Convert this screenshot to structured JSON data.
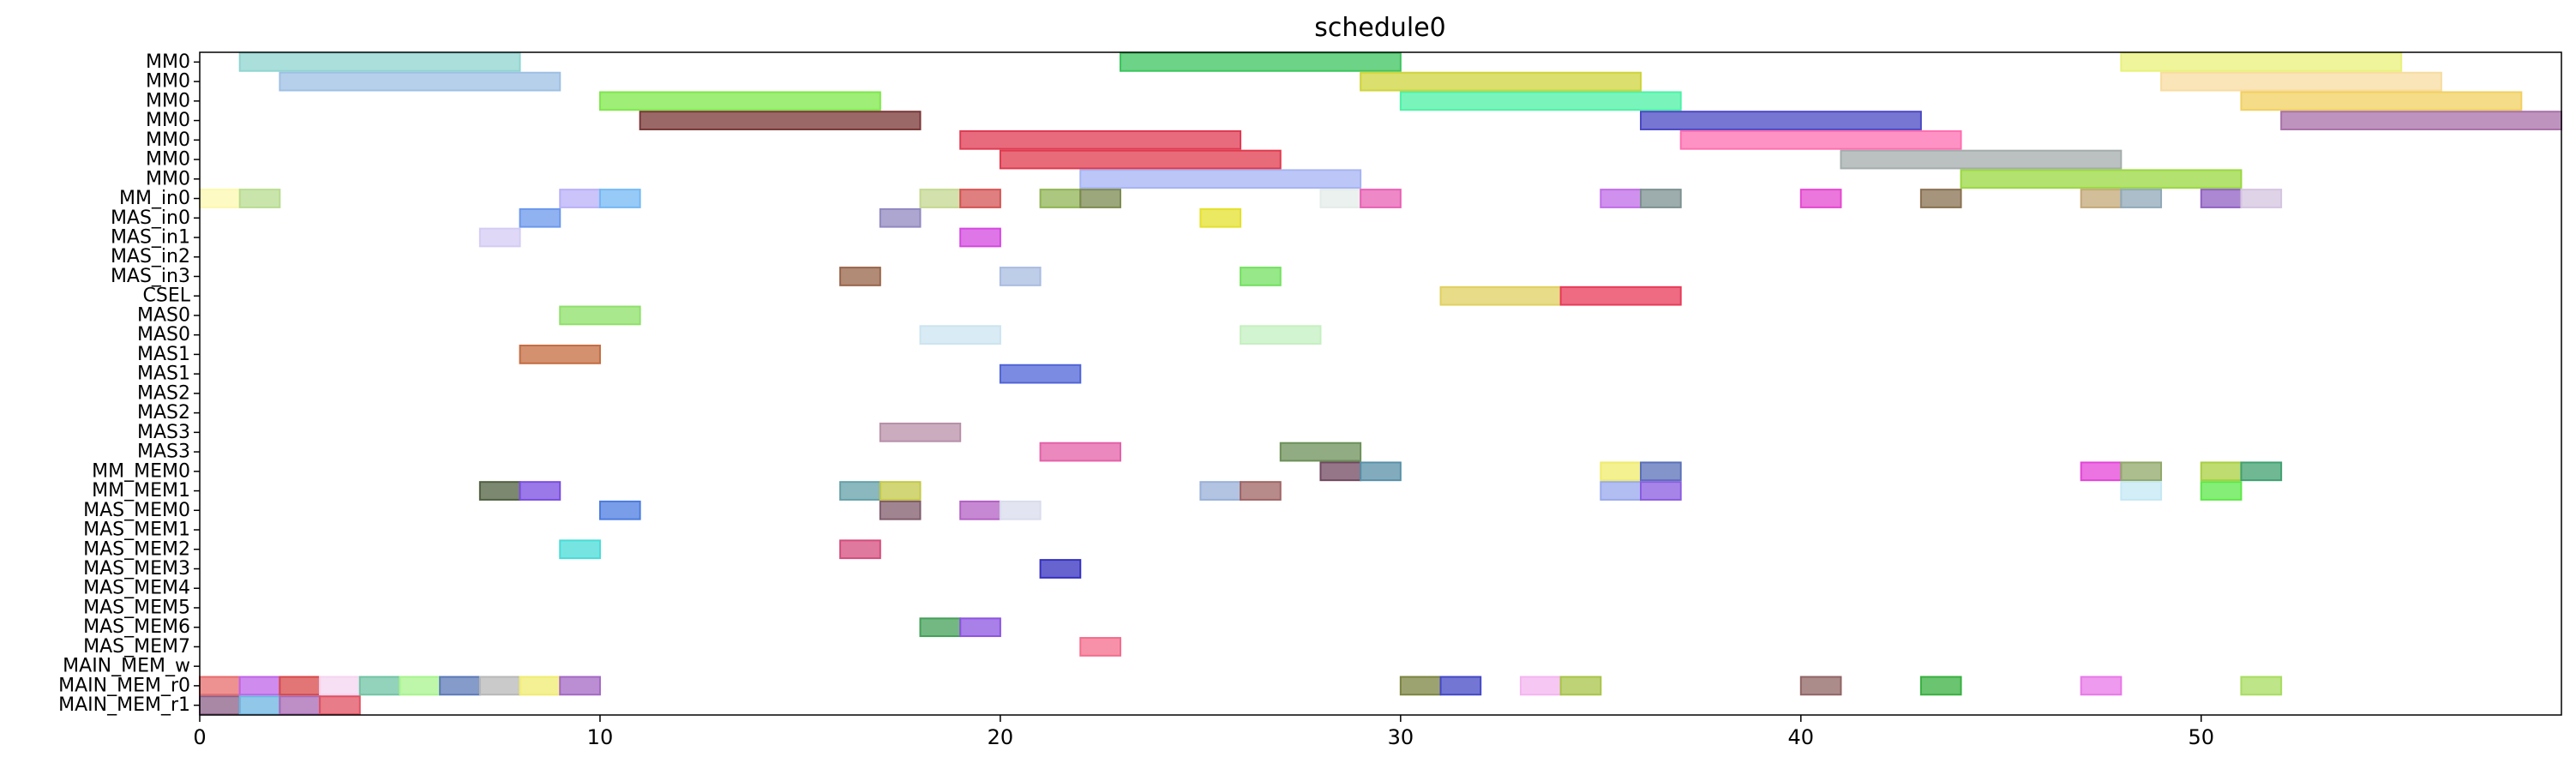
{
  "chart_data": {
    "type": "bar",
    "subtype": "gantt",
    "title": "schedule0",
    "xlabel": "",
    "ylabel": "",
    "xlim": [
      0,
      59
    ],
    "x_ticks": [
      0,
      10,
      20,
      30,
      40,
      50
    ],
    "grid": false,
    "rows": [
      "MM0",
      "MM0",
      "MM0",
      "MM0",
      "MM0",
      "MM0",
      "MM0",
      "MM_in0",
      "MAS_in0",
      "MAS_in1",
      "MAS_in2",
      "MAS_in3",
      "CSEL",
      "MAS0",
      "MAS0",
      "MAS1",
      "MAS1",
      "MAS2",
      "MAS2",
      "MAS3",
      "MAS3",
      "MM_MEM0",
      "MM_MEM1",
      "MAS_MEM0",
      "MAS_MEM1",
      "MAS_MEM2",
      "MAS_MEM3",
      "MAS_MEM4",
      "MAS_MEM5",
      "MAS_MEM6",
      "MAS_MEM7",
      "MAIN_MEM_w",
      "MAIN_MEM_r0",
      "MAIN_MEM_r1"
    ],
    "tasks": [
      {
        "row": 0,
        "start": 1,
        "end": 8,
        "color": "#8fd4d0"
      },
      {
        "row": 0,
        "start": 23,
        "end": 30,
        "color": "#3cc45e"
      },
      {
        "row": 0,
        "start": 48,
        "end": 55,
        "color": "#e8f27a"
      },
      {
        "row": 1,
        "start": 2,
        "end": 9,
        "color": "#9ec0e4"
      },
      {
        "row": 1,
        "start": 29,
        "end": 36,
        "color": "#cfd43c"
      },
      {
        "row": 1,
        "start": 49,
        "end": 56,
        "color": "#f8dca0"
      },
      {
        "row": 2,
        "start": 10,
        "end": 17,
        "color": "#7ee84a"
      },
      {
        "row": 2,
        "start": 30,
        "end": 37,
        "color": "#4cf2a6"
      },
      {
        "row": 2,
        "start": 51,
        "end": 58,
        "color": "#f2d060"
      },
      {
        "row": 3,
        "start": 11,
        "end": 18,
        "color": "#7a3636"
      },
      {
        "row": 3,
        "start": 36,
        "end": 43,
        "color": "#4a48c4"
      },
      {
        "row": 3,
        "start": 52,
        "end": 59,
        "color": "#a870a8"
      },
      {
        "row": 4,
        "start": 19,
        "end": 26,
        "color": "#e03a52"
      },
      {
        "row": 4,
        "start": 37,
        "end": 44,
        "color": "#ff6eb0"
      },
      {
        "row": 5,
        "start": 20,
        "end": 27,
        "color": "#e03a4e"
      },
      {
        "row": 5,
        "start": 41,
        "end": 48,
        "color": "#a4acac"
      },
      {
        "row": 6,
        "start": 22,
        "end": 29,
        "color": "#a6b4f4"
      },
      {
        "row": 6,
        "start": 44,
        "end": 51,
        "color": "#9ad840"
      },
      {
        "row": 7,
        "start": 0,
        "end": 1,
        "color": "#fcf8b0"
      },
      {
        "row": 7,
        "start": 1,
        "end": 2,
        "color": "#b8dc90"
      },
      {
        "row": 7,
        "start": 9,
        "end": 10,
        "color": "#b8b0f8"
      },
      {
        "row": 7,
        "start": 10,
        "end": 11,
        "color": "#74b8f4"
      },
      {
        "row": 7,
        "start": 18,
        "end": 19,
        "color": "#c4d890"
      },
      {
        "row": 7,
        "start": 19,
        "end": 20,
        "color": "#d45454"
      },
      {
        "row": 7,
        "start": 21,
        "end": 22,
        "color": "#90b454"
      },
      {
        "row": 7,
        "start": 22,
        "end": 23,
        "color": "#7c8a50"
      },
      {
        "row": 7,
        "start": 28,
        "end": 29,
        "color": "#e4ece8"
      },
      {
        "row": 7,
        "start": 29,
        "end": 30,
        "color": "#e860b4"
      },
      {
        "row": 7,
        "start": 35,
        "end": 36,
        "color": "#c06ce8"
      },
      {
        "row": 7,
        "start": 36,
        "end": 37,
        "color": "#7c9090"
      },
      {
        "row": 7,
        "start": 40,
        "end": 41,
        "color": "#e448d0"
      },
      {
        "row": 7,
        "start": 43,
        "end": 44,
        "color": "#887050"
      },
      {
        "row": 7,
        "start": 47,
        "end": 48,
        "color": "#c4a878"
      },
      {
        "row": 7,
        "start": 48,
        "end": 49,
        "color": "#90a8b8"
      },
      {
        "row": 7,
        "start": 50,
        "end": 51,
        "color": "#9060c4"
      },
      {
        "row": 7,
        "start": 51,
        "end": 52,
        "color": "#d4c4e0"
      },
      {
        "row": 8,
        "start": 8,
        "end": 9,
        "color": "#6c98ec"
      },
      {
        "row": 8,
        "start": 17,
        "end": 18,
        "color": "#9088c0"
      },
      {
        "row": 8,
        "start": 25,
        "end": 26,
        "color": "#e4e02c"
      },
      {
        "row": 9,
        "start": 7,
        "end": 8,
        "color": "#d4ccf4"
      },
      {
        "row": 9,
        "start": 19,
        "end": 20,
        "color": "#d448e0"
      },
      {
        "row": 11,
        "start": 16,
        "end": 17,
        "color": "#98644a"
      },
      {
        "row": 11,
        "start": 20,
        "end": 21,
        "color": "#a8bce0"
      },
      {
        "row": 11,
        "start": 26,
        "end": 27,
        "color": "#74e060"
      },
      {
        "row": 12,
        "start": 31,
        "end": 34,
        "color": "#e0d060"
      },
      {
        "row": 12,
        "start": 34,
        "end": 37,
        "color": "#e83a58"
      },
      {
        "row": 13,
        "start": 9,
        "end": 11,
        "color": "#8ee068"
      },
      {
        "row": 14,
        "start": 18,
        "end": 20,
        "color": "#cce4f0"
      },
      {
        "row": 14,
        "start": 26,
        "end": 28,
        "color": "#c4f0c0"
      },
      {
        "row": 15,
        "start": 8,
        "end": 10,
        "color": "#c46c40"
      },
      {
        "row": 16,
        "start": 20,
        "end": 22,
        "color": "#5064d8"
      },
      {
        "row": 19,
        "start": 17,
        "end": 19,
        "color": "#b890a8"
      },
      {
        "row": 20,
        "start": 21,
        "end": 23,
        "color": "#e460a8"
      },
      {
        "row": 20,
        "start": 27,
        "end": 29,
        "color": "#6c9058"
      },
      {
        "row": 21,
        "start": 28,
        "end": 29,
        "color": "#704860"
      },
      {
        "row": 21,
        "start": 29,
        "end": 30,
        "color": "#5890a8"
      },
      {
        "row": 21,
        "start": 35,
        "end": 36,
        "color": "#f0ec6c"
      },
      {
        "row": 21,
        "start": 36,
        "end": 37,
        "color": "#5a70b8"
      },
      {
        "row": 21,
        "start": 47,
        "end": 48,
        "color": "#e444d8"
      },
      {
        "row": 21,
        "start": 48,
        "end": 49,
        "color": "#90a868"
      },
      {
        "row": 21,
        "start": 50,
        "end": 51,
        "color": "#a8d040"
      },
      {
        "row": 21,
        "start": 51,
        "end": 52,
        "color": "#40a070"
      },
      {
        "row": 22,
        "start": 7,
        "end": 8,
        "color": "#506040"
      },
      {
        "row": 22,
        "start": 8,
        "end": 9,
        "color": "#7a4ce0"
      },
      {
        "row": 22,
        "start": 16,
        "end": 17,
        "color": "#64a0a8"
      },
      {
        "row": 22,
        "start": 17,
        "end": 18,
        "color": "#c4c848"
      },
      {
        "row": 22,
        "start": 25,
        "end": 26,
        "color": "#98b0d8"
      },
      {
        "row": 22,
        "start": 26,
        "end": 27,
        "color": "#a06464"
      },
      {
        "row": 22,
        "start": 35,
        "end": 36,
        "color": "#98a8ec"
      },
      {
        "row": 22,
        "start": 36,
        "end": 37,
        "color": "#8a5ce0"
      },
      {
        "row": 22,
        "start": 48,
        "end": 49,
        "color": "#c4e8f4"
      },
      {
        "row": 22,
        "start": 50,
        "end": 51,
        "color": "#5ce848"
      },
      {
        "row": 23,
        "start": 10,
        "end": 11,
        "color": "#4c7ce0"
      },
      {
        "row": 23,
        "start": 17,
        "end": 18,
        "color": "#805c6c"
      },
      {
        "row": 23,
        "start": 19,
        "end": 20,
        "color": "#b460c4"
      },
      {
        "row": 23,
        "start": 20,
        "end": 21,
        "color": "#d8dcec"
      },
      {
        "row": 25,
        "start": 9,
        "end": 10,
        "color": "#48dcd8"
      },
      {
        "row": 25,
        "start": 16,
        "end": 17,
        "color": "#d44c7c"
      },
      {
        "row": 26,
        "start": 21,
        "end": 22,
        "color": "#3430c0"
      },
      {
        "row": 29,
        "start": 18,
        "end": 19,
        "color": "#44a058"
      },
      {
        "row": 29,
        "start": 19,
        "end": 20,
        "color": "#8c54e0"
      },
      {
        "row": 30,
        "start": 22,
        "end": 23,
        "color": "#f46c8c"
      },
      {
        "row": 32,
        "start": 0,
        "end": 1,
        "color": "#e86c6c"
      },
      {
        "row": 32,
        "start": 1,
        "end": 2,
        "color": "#c064e8"
      },
      {
        "row": 32,
        "start": 2,
        "end": 3,
        "color": "#d84848"
      },
      {
        "row": 32,
        "start": 3,
        "end": 4,
        "color": "#f4d4f0"
      },
      {
        "row": 32,
        "start": 4,
        "end": 5,
        "color": "#70c4a4"
      },
      {
        "row": 32,
        "start": 5,
        "end": 6,
        "color": "#a8f48c"
      },
      {
        "row": 32,
        "start": 6,
        "end": 7,
        "color": "#5c7ab8"
      },
      {
        "row": 32,
        "start": 7,
        "end": 8,
        "color": "#b8b8b8"
      },
      {
        "row": 32,
        "start": 8,
        "end": 9,
        "color": "#f0ec70"
      },
      {
        "row": 32,
        "start": 9,
        "end": 10,
        "color": "#a468c4"
      },
      {
        "row": 32,
        "start": 30,
        "end": 31,
        "color": "#7c8440"
      },
      {
        "row": 32,
        "start": 31,
        "end": 32,
        "color": "#4448c4"
      },
      {
        "row": 32,
        "start": 33,
        "end": 34,
        "color": "#f4b4f0"
      },
      {
        "row": 32,
        "start": 34,
        "end": 35,
        "color": "#a8c448"
      },
      {
        "row": 32,
        "start": 40,
        "end": 41,
        "color": "#906464"
      },
      {
        "row": 32,
        "start": 43,
        "end": 44,
        "color": "#38b040"
      },
      {
        "row": 32,
        "start": 47,
        "end": 48,
        "color": "#e878e8"
      },
      {
        "row": 32,
        "start": 51,
        "end": 52,
        "color": "#a8dc60"
      },
      {
        "row": 33,
        "start": 0,
        "end": 1,
        "color": "#8c6088"
      },
      {
        "row": 33,
        "start": 1,
        "end": 2,
        "color": "#6cb4e0"
      },
      {
        "row": 33,
        "start": 2,
        "end": 3,
        "color": "#a868b4"
      },
      {
        "row": 33,
        "start": 3,
        "end": 4,
        "color": "#e05060"
      }
    ]
  }
}
